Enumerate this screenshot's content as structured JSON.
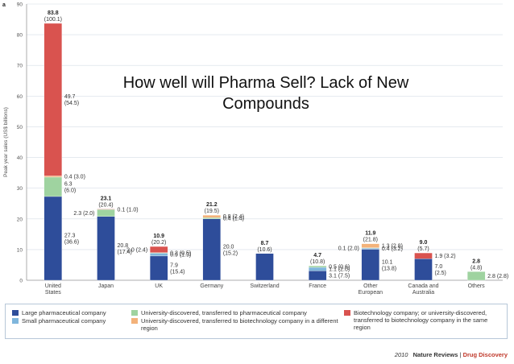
{
  "overlay_title": "How well will Pharma Sell? Lack of New Compounds",
  "chart_data": {
    "type": "bar",
    "panel_label": "a",
    "ylabel": "Peak year sales (US$ billions)",
    "ylim": [
      0,
      90
    ],
    "yticks": [
      0,
      10,
      20,
      30,
      40,
      50,
      60,
      70,
      80,
      90
    ],
    "categories": [
      "United States",
      "Japan",
      "UK",
      "Germany",
      "Switzerland",
      "France",
      "Other European",
      "Canada and Australia",
      "Others"
    ],
    "series": [
      {
        "name": "Large pharmaceutical company",
        "color": "#2e4d9a",
        "values": [
          27.3,
          20.8,
          7.9,
          20.0,
          8.7,
          3.1,
          10.1,
          7.0,
          0
        ]
      },
      {
        "name": "Small pharmaceutical company",
        "color": "#7fb6dc",
        "values": [
          0,
          0,
          0.9,
          0,
          0,
          1.1,
          0.4,
          0,
          0
        ]
      },
      {
        "name": "University-discovered, transferred to pharmaceutical company",
        "color": "#9fd3a0",
        "values": [
          6.3,
          2.3,
          0.2,
          0.4,
          0,
          0.5,
          0.1,
          0,
          2.8
        ]
      },
      {
        "name": "University-discovered, transferred to biotechnology company in a different region",
        "color": "#f3b27a",
        "values": [
          0.4,
          0,
          0,
          0.8,
          0,
          0,
          1.3,
          0,
          0
        ]
      },
      {
        "name": "Biotechnology company; or university-discovered, transferred to biotechnology company in the same region",
        "color": "#d9534f",
        "values": [
          49.7,
          0.1,
          2.0,
          0,
          0,
          0,
          0,
          1.9,
          0
        ]
      }
    ],
    "totals": [
      "83.8",
      "23.1",
      "10.9",
      "21.2",
      "8.7",
      "4.7",
      "11.9",
      "9.0",
      "2.8"
    ],
    "totals_sub": [
      "(100.1)",
      "(20.4)",
      "(20.2)",
      "(19.5)",
      "(10.6)",
      "(10.8)",
      "(21.8)",
      "(5.7)",
      "(4.8)"
    ],
    "annotations": [
      {
        "cat": 0,
        "series": 4,
        "text": "49.7\n(54.5)"
      },
      {
        "cat": 0,
        "series": 3,
        "text": "0.4 (3.0)"
      },
      {
        "cat": 0,
        "series": 2,
        "text": "6.3\n(6.0)"
      },
      {
        "cat": 0,
        "series": 0,
        "text": "27.3\n(36.6)"
      },
      {
        "cat": 1,
        "series": 4,
        "text": "0.1 (1.0)"
      },
      {
        "cat": 1,
        "series": 2,
        "text": "2.3 (2.0)",
        "side": "left"
      },
      {
        "cat": 1,
        "series": 0,
        "text": "20.8\n(17.4)"
      },
      {
        "cat": 2,
        "series": 4,
        "text": "2.0 (2.4)",
        "side": "left"
      },
      {
        "cat": 2,
        "series": 2,
        "text": "0.2 (0.5)"
      },
      {
        "cat": 2,
        "series": 1,
        "text": "0.9 (1.9)"
      },
      {
        "cat": 2,
        "series": 0,
        "text": "7.9\n(15.4)"
      },
      {
        "cat": 3,
        "series": 3,
        "text": "0.8 (2.4)"
      },
      {
        "cat": 3,
        "series": 2,
        "text": "0.4 (1.4)"
      },
      {
        "cat": 3,
        "series": 0,
        "text": "20.0\n(15.2)"
      },
      {
        "cat": 5,
        "series": 2,
        "text": "0.5 (0.6)"
      },
      {
        "cat": 5,
        "series": 1,
        "text": "1.1 (2.0)"
      },
      {
        "cat": 5,
        "series": 0,
        "text": "3.1 (7.5)"
      },
      {
        "cat": 6,
        "series": 3,
        "text": "1.3 (2.8)"
      },
      {
        "cat": 6,
        "series": 2,
        "text": "0.1 (2.0)",
        "side": "left"
      },
      {
        "cat": 6,
        "series": 1,
        "text": "0.4 (3.2)"
      },
      {
        "cat": 6,
        "series": 0,
        "text": "10.1\n(13.8)"
      },
      {
        "cat": 7,
        "series": 4,
        "text": "1.9 (3.2)"
      },
      {
        "cat": 7,
        "series": 0,
        "text": "7.0\n(2.5)"
      },
      {
        "cat": 8,
        "series": 2,
        "text": "2.8 (2.8)"
      }
    ]
  },
  "legend": [
    "Large pharmaceutical company",
    "Small pharmaceutical company",
    "University-discovered, transferred to pharmaceutical company",
    "University-discovered, transferred to biotechnology company in a different region",
    "Biotechnology company; or university-discovered, transferred to biotechnology company in the same region"
  ],
  "footer": {
    "year": "2010",
    "source_a": "Nature Reviews",
    "source_b": "Drug Discovery"
  }
}
